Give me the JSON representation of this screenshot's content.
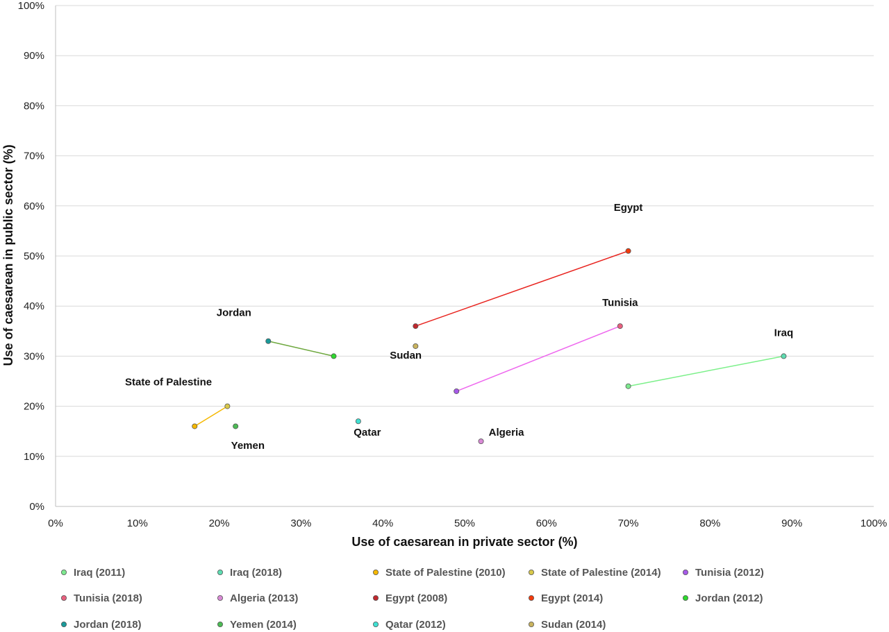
{
  "chart_data": {
    "type": "scatter",
    "xlabel": "Use of caesarean in private sector (%)",
    "ylabel": "Use of caesarean in public sector (%)",
    "xlim": [
      0,
      100
    ],
    "ylim": [
      0,
      100
    ],
    "x_ticks": [
      "0%",
      "10%",
      "20%",
      "30%",
      "40%",
      "50%",
      "60%",
      "70%",
      "80%",
      "90%",
      "100%"
    ],
    "y_ticks": [
      "0%",
      "10%",
      "20%",
      "30%",
      "40%",
      "50%",
      "60%",
      "70%",
      "80%",
      "90%",
      "100%"
    ],
    "grid": "horizontal",
    "legend_position": "bottom",
    "series": [
      {
        "name": "Iraq (2011)",
        "x": 70,
        "y": 24,
        "color": "#7de88f"
      },
      {
        "name": "Iraq (2018)",
        "x": 89,
        "y": 30,
        "color": "#5edcb2"
      },
      {
        "name": "State of Palestine (2010)",
        "x": 17,
        "y": 16,
        "color": "#f5b800"
      },
      {
        "name": "State of Palestine (2014)",
        "x": 21,
        "y": 20,
        "color": "#d8c84a"
      },
      {
        "name": "Tunisia (2012)",
        "x": 49,
        "y": 23,
        "color": "#a659e8"
      },
      {
        "name": "Tunisia (2018)",
        "x": 69,
        "y": 36,
        "color": "#e8607e"
      },
      {
        "name": "Algeria (2013)",
        "x": 52,
        "y": 13,
        "color": "#d98ad6"
      },
      {
        "name": "Egypt (2008)",
        "x": 44,
        "y": 36,
        "color": "#c0282e"
      },
      {
        "name": "Egypt (2014)",
        "x": 70,
        "y": 51,
        "color": "#f23a0c"
      },
      {
        "name": "Jordan (2012)",
        "x": 34,
        "y": 30,
        "color": "#2ed92e"
      },
      {
        "name": "Jordan (2018)",
        "x": 26,
        "y": 33,
        "color": "#1a9a9a"
      },
      {
        "name": "Yemen (2014)",
        "x": 22,
        "y": 16,
        "color": "#4cbb55"
      },
      {
        "name": "Qatar (2012)",
        "x": 37,
        "y": 17,
        "color": "#3fe0d2"
      },
      {
        "name": "Sudan (2014)",
        "x": 44,
        "y": 32,
        "color": "#c9b35e"
      }
    ],
    "connectors": [
      {
        "from": "Iraq (2011)",
        "to": "Iraq (2018)",
        "color": "#7cf08a"
      },
      {
        "from": "State of Palestine (2010)",
        "to": "State of Palestine (2014)",
        "color": "#f5b800"
      },
      {
        "from": "Tunisia (2012)",
        "to": "Tunisia (2018)",
        "color": "#ee66ee"
      },
      {
        "from": "Egypt (2008)",
        "to": "Egypt (2014)",
        "color": "#e8231e"
      },
      {
        "from": "Jordan (2018)",
        "to": "Jordan (2012)",
        "color": "#6ea83e"
      }
    ],
    "annotations": [
      {
        "text": "Egypt",
        "x": 70,
        "y": 59
      },
      {
        "text": "Tunisia",
        "x": 69,
        "y": 40
      },
      {
        "text": "Iraq",
        "x": 89,
        "y": 34
      },
      {
        "text": "Jordan",
        "x": 21.8,
        "y": 38
      },
      {
        "text": "Sudan",
        "x": 42.8,
        "y": 29.5
      },
      {
        "text": "State of Palestine",
        "x": 13.8,
        "y": 24.2
      },
      {
        "text": "Qatar",
        "x": 38.1,
        "y": 14.1
      },
      {
        "text": "Algeria",
        "x": 55.1,
        "y": 14.1
      },
      {
        "text": "Yemen",
        "x": 23.5,
        "y": 11.5
      }
    ]
  }
}
